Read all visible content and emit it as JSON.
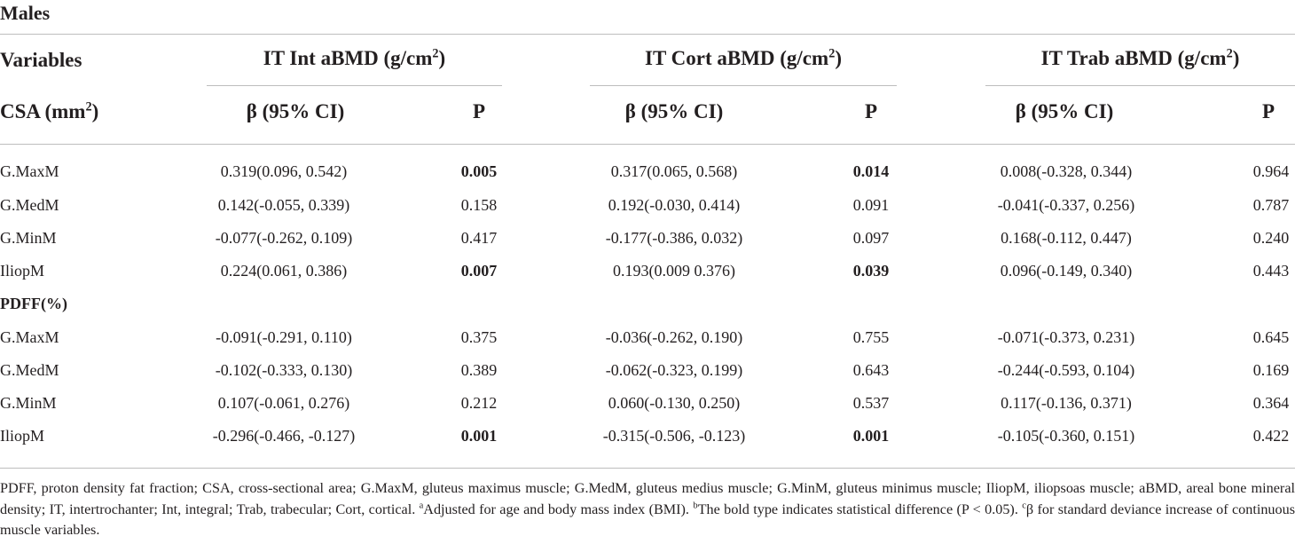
{
  "table": {
    "title": "Males",
    "header": {
      "variables": "Variables",
      "csa": "CSA (mm",
      "csa_sup": "2",
      "csa_close": ")",
      "groups": [
        {
          "label": "IT Int aBMD (g/cm",
          "sup": "2",
          "close": ")"
        },
        {
          "label": "IT Cort aBMD (g/cm",
          "sup": "2",
          "close": ")"
        },
        {
          "label": "IT Trab aBMD (g/cm",
          "sup": "2",
          "close": ")"
        }
      ],
      "beta": "β (95% CI)",
      "p": "P"
    },
    "csa_rows": [
      {
        "label": "G.MaxM",
        "vals": [
          "0.319(0.096, 0.542)",
          "0.005",
          "0.317(0.065, 0.568)",
          "0.014",
          "0.008(-0.328, 0.344)",
          "0.964"
        ],
        "bold": [
          false,
          true,
          false,
          true,
          false,
          false
        ]
      },
      {
        "label": "G.MedM",
        "vals": [
          "0.142(-0.055, 0.339)",
          "0.158",
          "0.192(-0.030, 0.414)",
          "0.091",
          "-0.041(-0.337, 0.256)",
          "0.787"
        ],
        "bold": [
          false,
          false,
          false,
          false,
          false,
          false
        ]
      },
      {
        "label": "G.MinM",
        "vals": [
          "-0.077(-0.262, 0.109)",
          "0.417",
          "-0.177(-0.386, 0.032)",
          "0.097",
          "0.168(-0.112, 0.447)",
          "0.240"
        ],
        "bold": [
          false,
          false,
          false,
          false,
          false,
          false
        ]
      },
      {
        "label": "IliopM",
        "vals": [
          "0.224(0.061, 0.386)",
          "0.007",
          "0.193(0.009 0.376)",
          "0.039",
          "0.096(-0.149, 0.340)",
          "0.443"
        ],
        "bold": [
          false,
          true,
          false,
          true,
          false,
          false
        ]
      }
    ],
    "pdff_label": "PDFF(%)",
    "pdff_rows": [
      {
        "label": "G.MaxM",
        "vals": [
          "-0.091(-0.291, 0.110)",
          "0.375",
          "-0.036(-0.262, 0.190)",
          "0.755",
          "-0.071(-0.373, 0.231)",
          "0.645"
        ],
        "bold": [
          false,
          false,
          false,
          false,
          false,
          false
        ]
      },
      {
        "label": "G.MedM",
        "vals": [
          "-0.102(-0.333, 0.130)",
          "0.389",
          "-0.062(-0.323, 0.199)",
          "0.643",
          "-0.244(-0.593, 0.104)",
          "0.169"
        ],
        "bold": [
          false,
          false,
          false,
          false,
          false,
          false
        ]
      },
      {
        "label": "G.MinM",
        "vals": [
          "0.107(-0.061, 0.276)",
          "0.212",
          "0.060(-0.130, 0.250)",
          "0.537",
          "0.117(-0.136, 0.371)",
          "0.364"
        ],
        "bold": [
          false,
          false,
          false,
          false,
          false,
          false
        ]
      },
      {
        "label": "IliopM",
        "vals": [
          "-0.296(-0.466, -0.127)",
          "0.001",
          "-0.315(-0.506, -0.123)",
          "0.001",
          "-0.105(-0.360, 0.151)",
          "0.422"
        ],
        "bold": [
          false,
          true,
          false,
          true,
          false,
          false
        ]
      }
    ]
  },
  "footnote": {
    "text1": "PDFF, proton density fat fraction; CSA, cross-sectional area; G.MaxM, gluteus maximus muscle; G.MedM, gluteus medius muscle; G.MinM, gluteus minimus muscle; IliopM, iliopsoas muscle; aBMD, areal bone mineral density; IT, intertrochanter; Int, integral; Trab, trabecular; Cort, cortical. ",
    "sup_a": "a",
    "text2": "Adjusted for age and body mass index (BMI). ",
    "sup_b": "b",
    "text3": "The bold type indicates statistical difference (P < 0.05). ",
    "sup_c": "c",
    "text4": "β for standard deviance increase of continuous muscle variables."
  }
}
